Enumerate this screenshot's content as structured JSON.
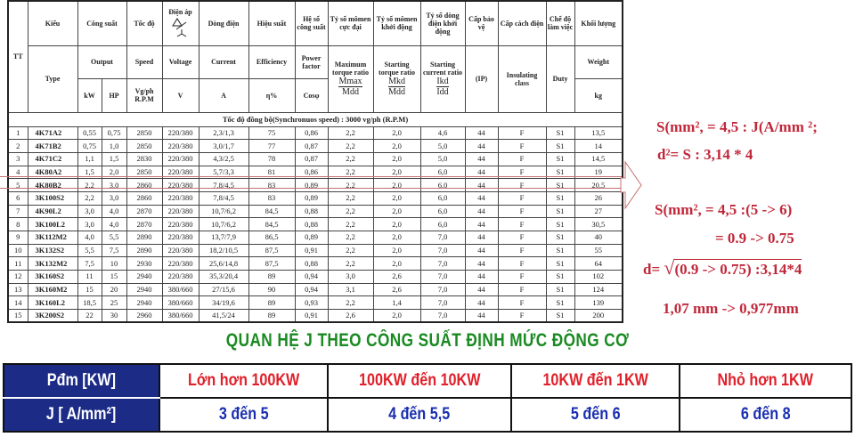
{
  "motor_table": {
    "header_vi": {
      "tt": "TT",
      "type": "Kiểu",
      "output": "Công suất",
      "speed": "Tốc độ",
      "voltage": "Điện áp",
      "current": "Dòng điện",
      "efficiency": "Hiệu suất",
      "power_factor": "Hệ số công suất",
      "max_torque": "Tỷ số mômen cực đại",
      "start_torque": "Tỷ số mômen khởi động",
      "start_current": "Tỷ số dòng điện khởi động",
      "protection": "Cấp bảo vệ",
      "insulation": "Cấp cách điện",
      "duty": "Chế độ làm việc",
      "weight": "Khối lượng"
    },
    "header_en": {
      "type": "Type",
      "output": "Output",
      "speed": "Speed",
      "voltage": "Voltage",
      "current": "Current",
      "efficiency": "Efficiency",
      "power_factor": "Power factor",
      "max_torque": "Maximum torque ratio",
      "start_torque": "Starting torque ratio",
      "start_current": "Starting current ratio",
      "protection": "(IP)",
      "insulation": "Insulating class",
      "duty": "Duty",
      "weight": "Weight"
    },
    "units": {
      "kw": "kW",
      "hp": "HP",
      "speed": "Vg/ph R.P.M",
      "voltage": "V",
      "current": "A",
      "efficiency": "η%",
      "power_factor": "Cosφ",
      "max_torque_num": "Mmax",
      "max_torque_den": "Mdd",
      "start_torque_num": "Mkd",
      "start_torque_den": "Mdd",
      "start_current_num": "Ikd",
      "start_current_den": "Idd",
      "weight": "kg"
    },
    "sync_speed_label": "Tốc độ đồng bộ(Synchronuos speed) : 3000 vg/ph (R.P.M)",
    "rows": [
      [
        "1",
        "4K71A2",
        "0,55",
        "0,75",
        "2850",
        "220/380",
        "2,3/1,3",
        "75",
        "0,86",
        "2,2",
        "2,0",
        "4,6",
        "44",
        "F",
        "S1",
        "13,5"
      ],
      [
        "2",
        "4K71B2",
        "0,75",
        "1,0",
        "2850",
        "220/380",
        "3,0/1,7",
        "77",
        "0,87",
        "2,2",
        "2,0",
        "5,0",
        "44",
        "F",
        "S1",
        "14"
      ],
      [
        "3",
        "4K71C2",
        "1,1",
        "1,5",
        "2830",
        "220/380",
        "4,3/2,5",
        "78",
        "0,87",
        "2,2",
        "2,0",
        "5,0",
        "44",
        "F",
        "S1",
        "14,5"
      ],
      [
        "4",
        "4K80A2",
        "1,5",
        "2,0",
        "2850",
        "220/380",
        "5,7/3,3",
        "81",
        "0,86",
        "2,2",
        "2,0",
        "6,0",
        "44",
        "F",
        "S1",
        "19"
      ],
      [
        "5",
        "4K80B2",
        "2,2",
        "3,0",
        "2860",
        "220/380",
        "7,8/4,5",
        "83",
        "0,89",
        "2,2",
        "2,0",
        "6,0",
        "44",
        "F",
        "S1",
        "20,5"
      ],
      [
        "6",
        "3K100S2",
        "2,2",
        "3,0",
        "2860",
        "220/380",
        "7,8/4,5",
        "83",
        "0,89",
        "2,2",
        "2,0",
        "6,0",
        "44",
        "F",
        "S1",
        "26"
      ],
      [
        "7",
        "4K90L2",
        "3,0",
        "4,0",
        "2870",
        "220/380",
        "10,7/6,2",
        "84,5",
        "0,88",
        "2,2",
        "2,0",
        "6,0",
        "44",
        "F",
        "S1",
        "27"
      ],
      [
        "8",
        "3K100L2",
        "3,0",
        "4,0",
        "2870",
        "220/380",
        "10,7/6,2",
        "84,5",
        "0,88",
        "2,2",
        "2,0",
        "6,0",
        "44",
        "F",
        "S1",
        "30,5"
      ],
      [
        "9",
        "3K112M2",
        "4,0",
        "5,5",
        "2890",
        "220/380",
        "13,7/7,9",
        "86,5",
        "0,89",
        "2,2",
        "2,0",
        "7,0",
        "44",
        "F",
        "S1",
        "40"
      ],
      [
        "10",
        "3K132S2",
        "5,5",
        "7,5",
        "2890",
        "220/380",
        "18,2/10,5",
        "87,5",
        "0,91",
        "2,2",
        "2,0",
        "7,0",
        "44",
        "F",
        "S1",
        "55"
      ],
      [
        "11",
        "3K132M2",
        "7,5",
        "10",
        "2930",
        "220/380",
        "25,6/14,8",
        "87,5",
        "0,88",
        "2,2",
        "2,0",
        "7,0",
        "44",
        "F",
        "S1",
        "64"
      ],
      [
        "12",
        "3K160S2",
        "11",
        "15",
        "2940",
        "220/380",
        "35,3/20,4",
        "89",
        "0,94",
        "3,0",
        "2,6",
        "7,0",
        "44",
        "F",
        "S1",
        "102"
      ],
      [
        "13",
        "3K160M2",
        "15",
        "20",
        "2940",
        "380/660",
        "27/15,6",
        "90",
        "0,94",
        "3,1",
        "2,6",
        "7,0",
        "44",
        "F",
        "S1",
        "124"
      ],
      [
        "14",
        "3K160L2",
        "18,5",
        "25",
        "2940",
        "380/660",
        "34/19,6",
        "89",
        "0,93",
        "2,2",
        "1,4",
        "7,0",
        "44",
        "F",
        "S1",
        "139"
      ],
      [
        "15",
        "3K200S2",
        "22",
        "30",
        "2960",
        "380/660",
        "41,5/24",
        "89",
        "0,91",
        "2,6",
        "2,0",
        "7,0",
        "44",
        "F",
        "S1",
        "200"
      ]
    ],
    "highlighted_row": "5"
  },
  "notes": {
    "line1": "S(mm², = 4,5 : J(A/mm ²;",
    "line2": "d²= S : 3,14 * 4",
    "line3": "S(mm², = 4,5 :(5 -> 6)",
    "line4": "= 0.9 -> 0.75",
    "line5_prefix": "d=",
    "line5_radicand": "(0.9 -> 0.75) :3,14*4",
    "line6": "1,07 mm ->  0,977mm",
    "color": "#c0283a"
  },
  "j_section": {
    "title": "QUAN HỆ J THEO CÔNG SUẤT ĐỊNH MỨC ĐỘNG CƠ",
    "row1_label": "Pđm [KW]",
    "row2_label": "J [ A/mm²]",
    "power_ranges": [
      "Lớn hơn 100KW",
      "100KW đến 10KW",
      "10KW đến 1KW",
      "Nhỏ hơn 1KW"
    ],
    "j_ranges": [
      "3 đến 5",
      "4 đến 5,5",
      "5 đến 6",
      "6 đến 8"
    ],
    "colors": {
      "title": "#1a8a22",
      "header_bg": "#1c2b86",
      "power": "#e0202a",
      "j": "#1a2fb0"
    }
  }
}
